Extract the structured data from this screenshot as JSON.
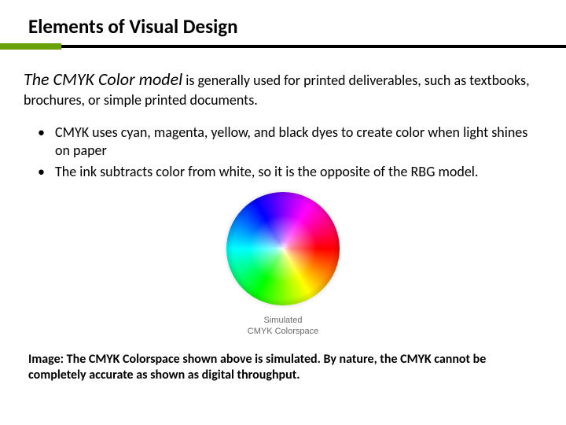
{
  "colors": {
    "accent": "#6aa206",
    "text": "#000000",
    "background": "#ffffff",
    "figure_label": "#6a6a6a"
  },
  "title": "Elements of Visual Design",
  "intro": {
    "lead": "The CMYK Color model",
    "rest": " is generally used for printed deliverables, such as textbooks, brochures, or simple printed documents."
  },
  "bullets": [
    "CMYK uses cyan, magenta, yellow, and black dyes to create color when light shines on paper",
    "The ink subtracts color from white, so it is the opposite of the RBG model."
  ],
  "figure": {
    "type": "color-wheel",
    "label_line1": "Simulated",
    "label_line2": "CMYK Colorspace",
    "wheel_colors": [
      "#ff0000",
      "#ff8000",
      "#ffff00",
      "#80ff00",
      "#00ff00",
      "#00ff80",
      "#00ffff",
      "#0080ff",
      "#0000ff",
      "#8000ff",
      "#ff00ff",
      "#ff0080"
    ]
  },
  "caption": "Image: The CMYK Colorspace shown above is simulated. By nature, the CMYK cannot be completely accurate as shown as digital throughput."
}
